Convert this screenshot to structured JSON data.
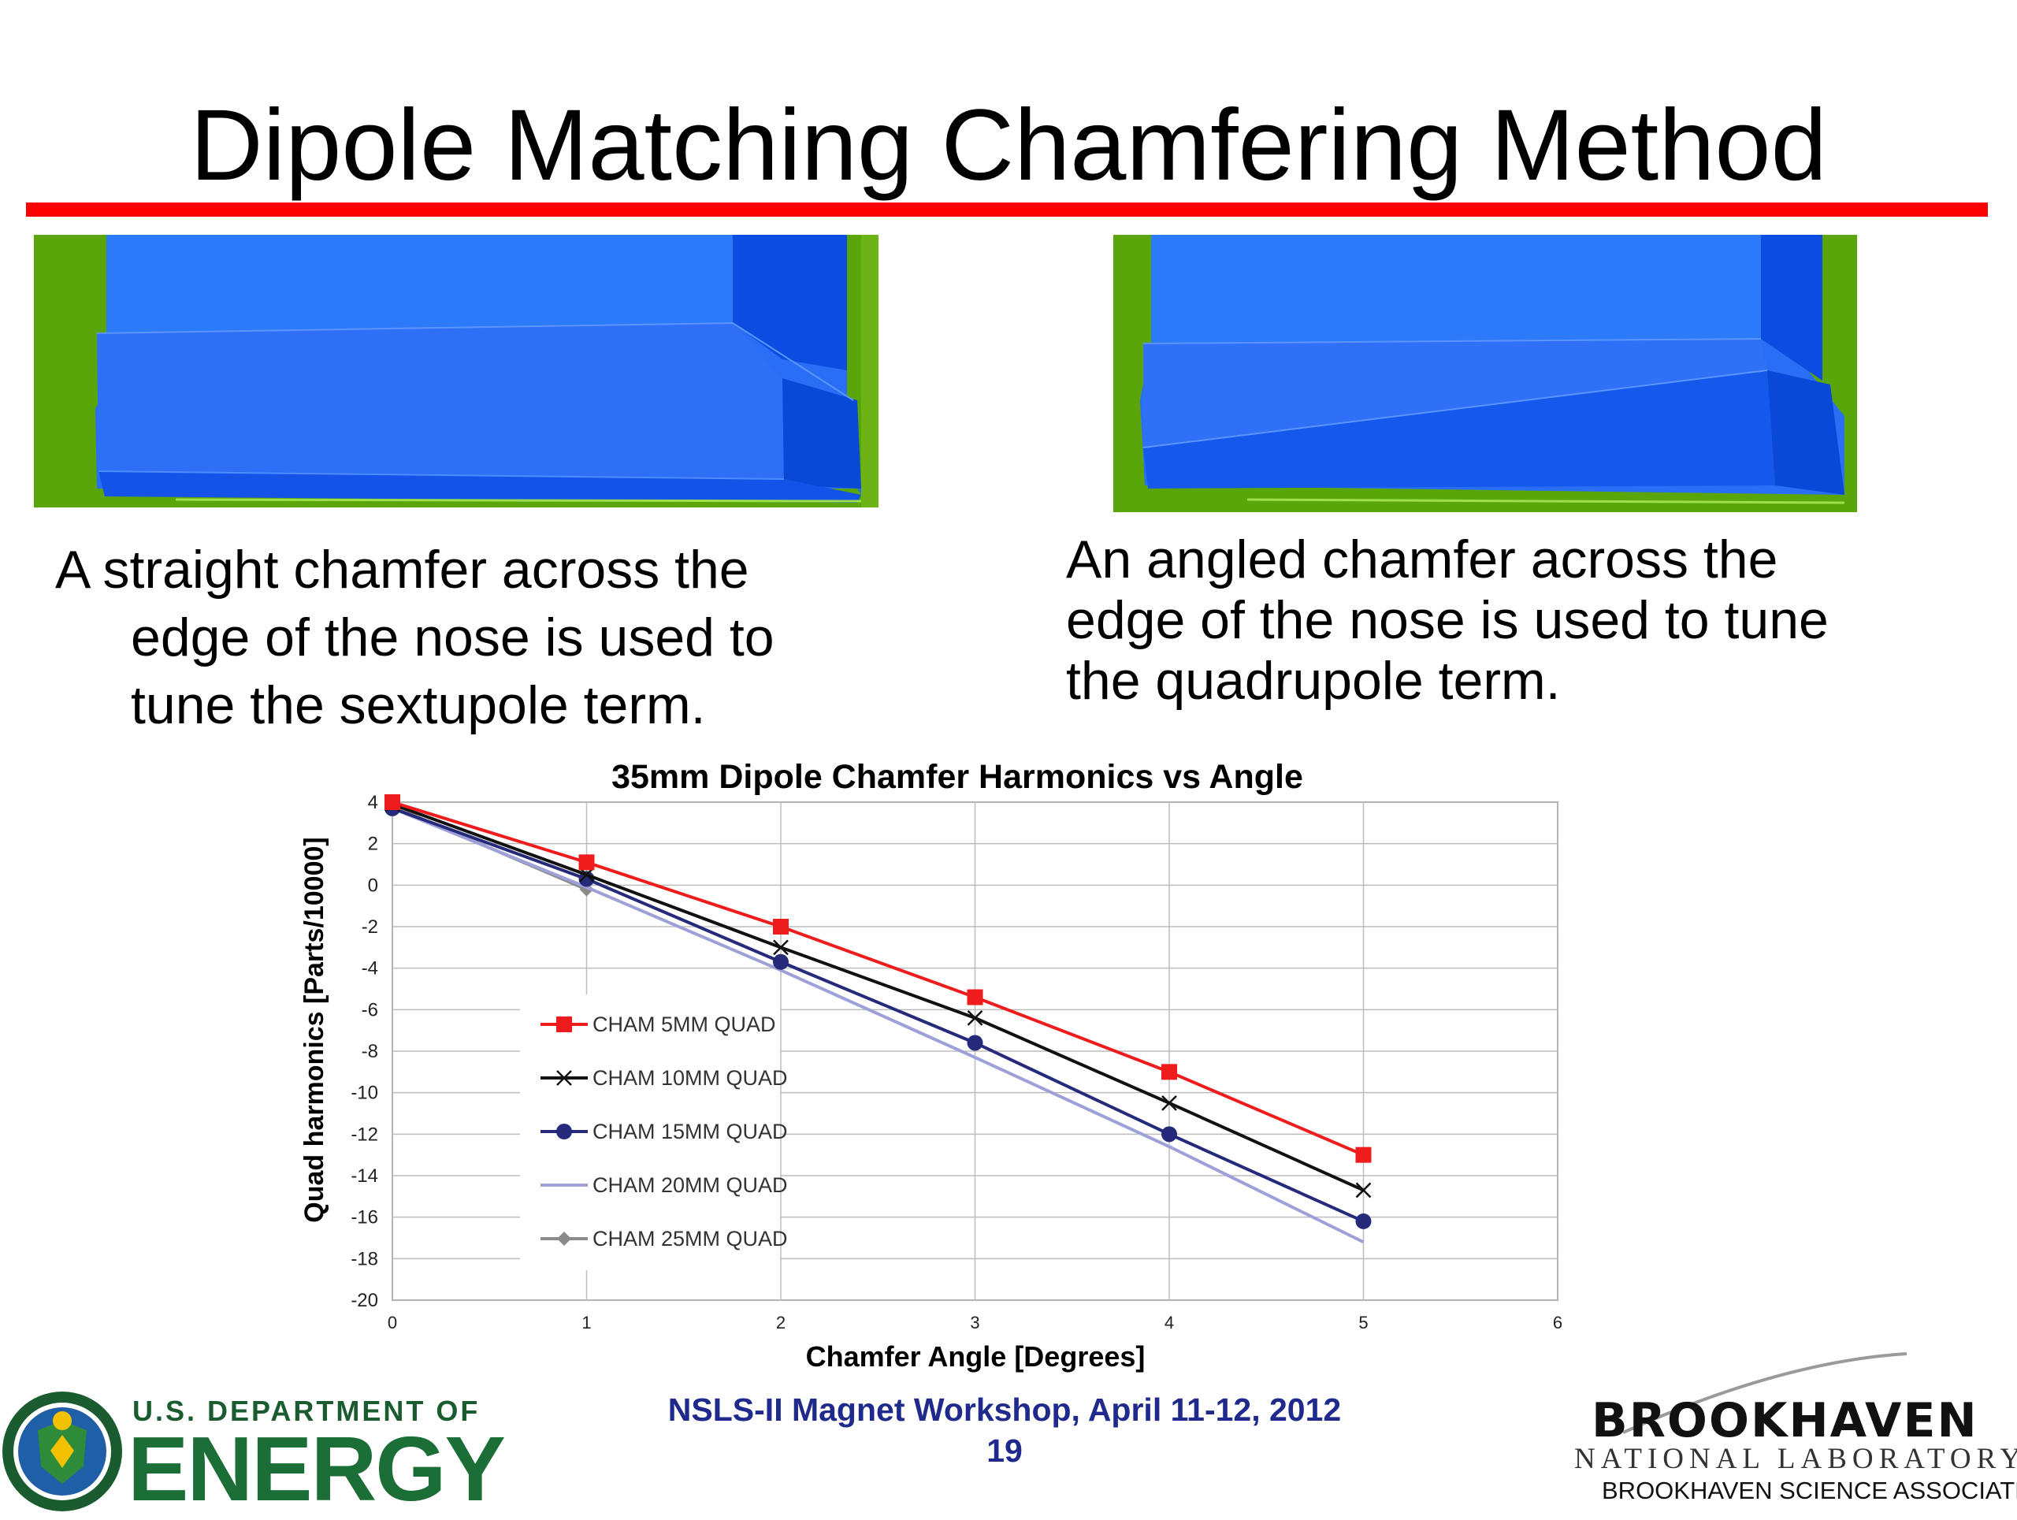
{
  "slide": {
    "title": "Dipole Matching Chamfering Method",
    "caption_left": [
      "A straight chamfer across the",
      "edge of the nose is used to",
      "tune the sextupole term."
    ],
    "caption_right": [
      "An angled chamfer across the",
      "edge of the nose is used to tune",
      "the quadrupole term."
    ]
  },
  "colors": {
    "title_rule": "#ff0000",
    "render_background": "#5aa50a",
    "render_body": "#2a6ef5",
    "footer_text": "#1f2a8c"
  },
  "chart_data": {
    "type": "line",
    "title": "35mm Dipole Chamfer Harmonics vs Angle",
    "xlabel": "Chamfer Angle [Degrees]",
    "ylabel": "Quad harmonics [Parts/10000]",
    "xlim": [
      0,
      6
    ],
    "ylim": [
      -20,
      4
    ],
    "x_ticks": [
      "0",
      "1",
      "2",
      "3",
      "4",
      "5",
      "6"
    ],
    "y_ticks": [
      "4",
      "2",
      "0",
      "-2",
      "-4",
      "-6",
      "-8",
      "-10",
      "-12",
      "-14",
      "-16",
      "-18",
      "-20"
    ],
    "grid": true,
    "legend_position": "inside-left",
    "x": [
      0,
      1,
      2,
      3,
      4,
      5
    ],
    "series": [
      {
        "name": "CHAM 5MM QUAD",
        "values": [
          4.0,
          1.1,
          -2.0,
          -5.4,
          -9.0,
          -13.0
        ],
        "color": "#ee1c1c",
        "marker": "square"
      },
      {
        "name": "CHAM 10MM QUAD",
        "values": [
          3.9,
          0.5,
          -3.0,
          -6.4,
          -10.5,
          -14.7
        ],
        "color": "#111111",
        "marker": "x"
      },
      {
        "name": "CHAM 15MM QUAD",
        "values": [
          3.7,
          0.3,
          -3.7,
          -7.6,
          -12.0,
          -16.2
        ],
        "color": "#262a7a",
        "marker": "circle"
      },
      {
        "name": "CHAM 20MM QUAD",
        "values": [
          3.7,
          -0.1,
          -4.1,
          -8.3,
          -12.6,
          -17.2
        ],
        "color": "#9ea0d8",
        "marker": "none"
      },
      {
        "name": "CHAM 25MM QUAD",
        "values": [
          3.8,
          -0.2,
          null,
          null,
          null,
          null
        ],
        "color": "#8a8a8a",
        "marker": "diamond"
      }
    ]
  },
  "footer": {
    "event": "NSLS-II Magnet Workshop, April 11-12, 2012",
    "page": "19",
    "doe_line1": "U.S. DEPARTMENT OF",
    "doe_line2": "ENERGY",
    "bnl_name": "BROOKHAVEN",
    "bnl_sub": "NATIONAL LABORATORY",
    "bnl_assoc": "BROOKHAVEN SCIENCE ASSOCIATES"
  }
}
